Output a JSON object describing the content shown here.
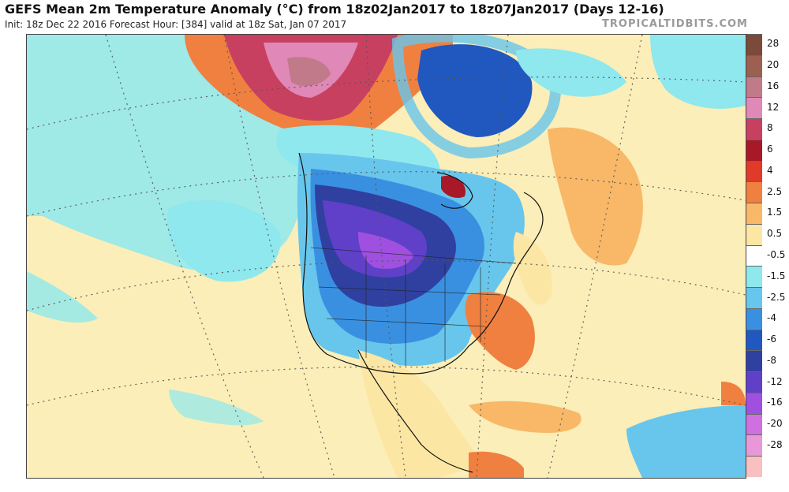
{
  "header": {
    "title": "GEFS Mean 2m Temperature Anomaly (°C) from 18z02Jan2017 to 18z07Jan2017 (Days 12-16)",
    "subtitle": "Init: 18z Dec 22 2016   Forecast Hour: [384]   valid at 18z Sat, Jan 07 2017",
    "brand": "TROPICALTIDBITS.COM"
  },
  "map": {
    "variable": "2m temperature anomaly",
    "units": "°C",
    "region": "North America"
  },
  "colorbar": {
    "levels": [
      {
        "label": "28",
        "color": "#7a4a3a"
      },
      {
        "label": "20",
        "color": "#9c6050"
      },
      {
        "label": "16",
        "color": "#c07a8a"
      },
      {
        "label": "12",
        "color": "#e088b8"
      },
      {
        "label": "8",
        "color": "#c84060"
      },
      {
        "label": "6",
        "color": "#a81828"
      },
      {
        "label": "4",
        "color": "#e03a28"
      },
      {
        "label": "2.5",
        "color": "#f08040"
      },
      {
        "label": "1.5",
        "color": "#f8b868"
      },
      {
        "label": "0.5",
        "color": "#fce6a4"
      },
      {
        "label": "-0.5",
        "color": "#ffffff"
      },
      {
        "label": "-1.5",
        "color": "#8ee8ee"
      },
      {
        "label": "-2.5",
        "color": "#68c6ec"
      },
      {
        "label": "-4",
        "color": "#3a90e0"
      },
      {
        "label": "-6",
        "color": "#2058c0"
      },
      {
        "label": "-8",
        "color": "#3040a0"
      },
      {
        "label": "-12",
        "color": "#6040c8"
      },
      {
        "label": "-16",
        "color": "#a050e0"
      },
      {
        "label": "-20",
        "color": "#d070e0"
      },
      {
        "label": "-28",
        "color": "#e898d8"
      },
      {
        "label": "",
        "color": "#f8c0c0"
      }
    ]
  }
}
